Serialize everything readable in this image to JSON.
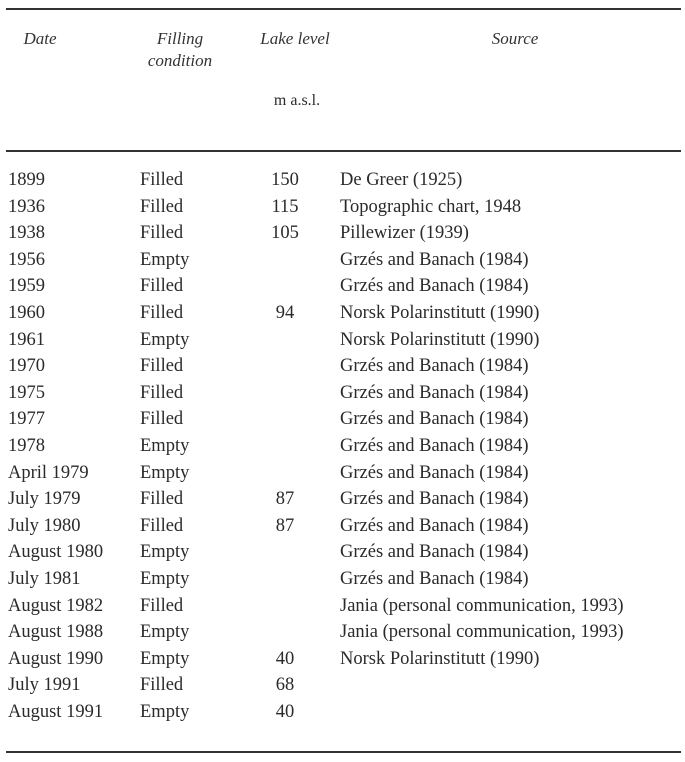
{
  "table": {
    "headers": {
      "date": "Date",
      "filling": "Filling condition",
      "level": "Lake level",
      "level_unit": "m a.s.l.",
      "source": "Source"
    },
    "rows": [
      {
        "date": "1899",
        "filling": "Filled",
        "level": "150",
        "source": "De Greer (1925)"
      },
      {
        "date": "1936",
        "filling": "Filled",
        "level": "115",
        "source": "Topographic chart, 1948"
      },
      {
        "date": "1938",
        "filling": "Filled",
        "level": "105",
        "source": "Pillewizer (1939)"
      },
      {
        "date": "1956",
        "filling": "Empty",
        "level": "",
        "source": "Grzés and Banach (1984)"
      },
      {
        "date": "1959",
        "filling": "Filled",
        "level": "",
        "source": "Grzés and Banach (1984)"
      },
      {
        "date": "1960",
        "filling": "Filled",
        "level": "94",
        "source": "Norsk Polarinstitutt (1990)"
      },
      {
        "date": "1961",
        "filling": "Empty",
        "level": "",
        "source": "Norsk Polarinstitutt (1990)"
      },
      {
        "date": "1970",
        "filling": "Filled",
        "level": "",
        "source": "Grzés and Banach (1984)"
      },
      {
        "date": "1975",
        "filling": "Filled",
        "level": "",
        "source": "Grzés and Banach (1984)"
      },
      {
        "date": "1977",
        "filling": "Filled",
        "level": "",
        "source": "Grzés and Banach (1984)"
      },
      {
        "date": "1978",
        "filling": "Empty",
        "level": "",
        "source": "Grzés and Banach (1984)"
      },
      {
        "date": "April 1979",
        "filling": "Empty",
        "level": "",
        "source": "Grzés and Banach (1984)"
      },
      {
        "date": "July 1979",
        "filling": "Filled",
        "level": "87",
        "source": "Grzés and Banach (1984)"
      },
      {
        "date": "July 1980",
        "filling": "Filled",
        "level": "87",
        "source": "Grzés and Banach (1984)"
      },
      {
        "date": "August 1980",
        "filling": "Empty",
        "level": "",
        "source": "Grzés and Banach (1984)"
      },
      {
        "date": "July 1981",
        "filling": "Empty",
        "level": "",
        "source": "Grzés and Banach (1984)"
      },
      {
        "date": "August 1982",
        "filling": "Filled",
        "level": "",
        "source": "Jania (personal communication, 1993)"
      },
      {
        "date": "August 1988",
        "filling": "Empty",
        "level": "",
        "source": "Jania (personal communication, 1993)"
      },
      {
        "date": "August 1990",
        "filling": "Empty",
        "level": "40",
        "source": "Norsk Polarinstitutt (1990)"
      },
      {
        "date": "July 1991",
        "filling": "Filled",
        "level": "68",
        "source": ""
      },
      {
        "date": "August 1991",
        "filling": "Empty",
        "level": "40",
        "source": ""
      }
    ]
  }
}
